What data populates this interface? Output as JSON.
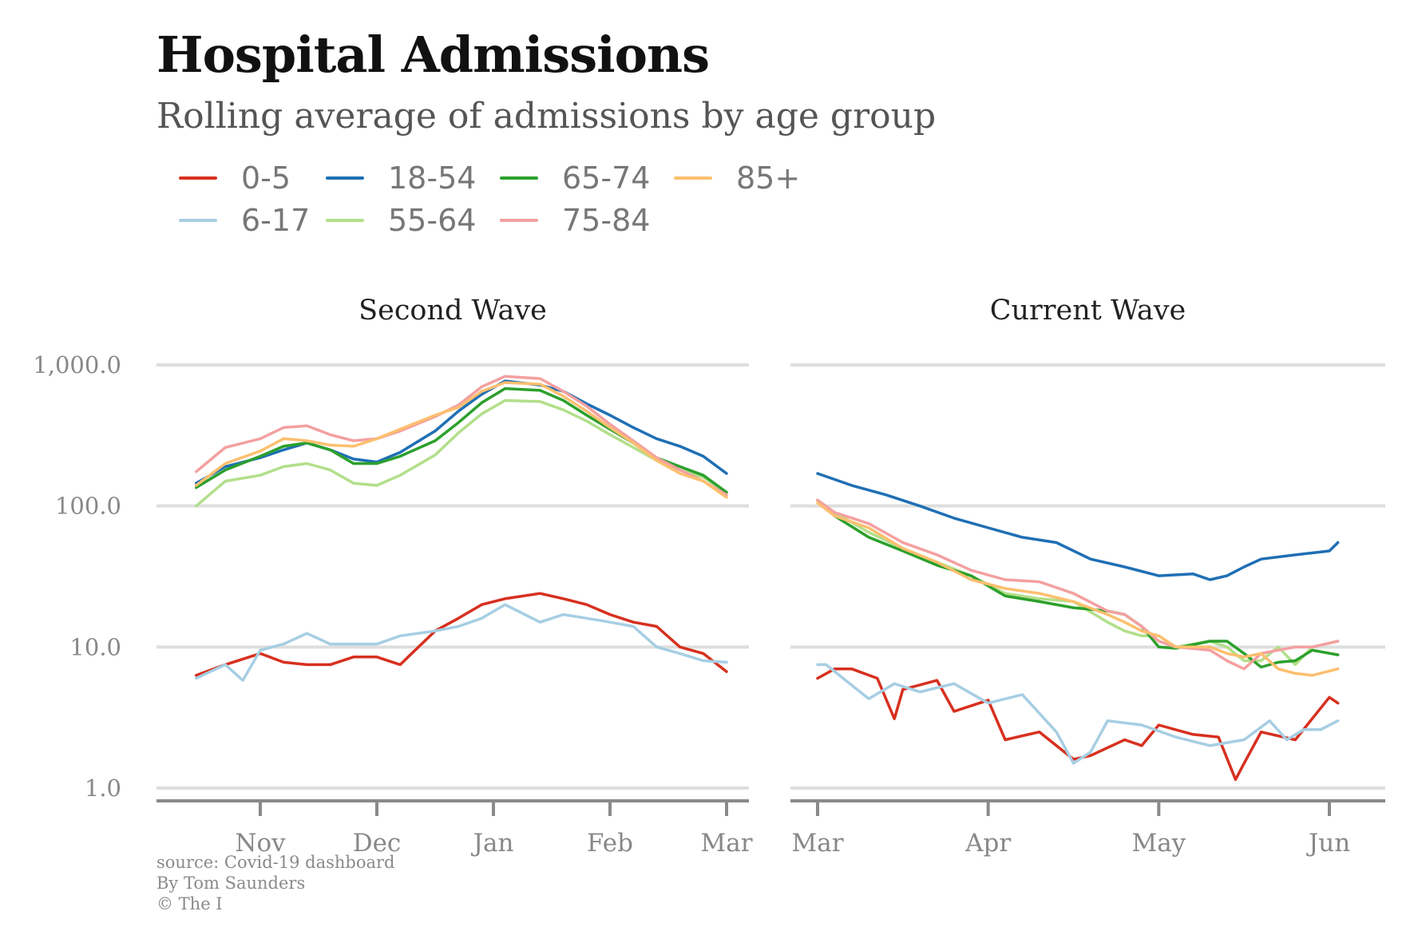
{
  "header": {
    "title": "Hospital Admissions",
    "subtitle": "Rolling average of admissions by age group"
  },
  "legend": [
    {
      "label": "0-5",
      "color": "#d7301f"
    },
    {
      "label": "6-17",
      "color": "#a6cee3"
    },
    {
      "label": "18-54",
      "color": "#1f6fb4"
    },
    {
      "label": "55-64",
      "color": "#b2df8a"
    },
    {
      "label": "65-74",
      "color": "#2ca02c"
    },
    {
      "label": "75-84",
      "color": "#f4a0a0"
    },
    {
      "label": "85+",
      "color": "#fdbf6f"
    }
  ],
  "footer": {
    "source": "source: Covid-19 dashboard",
    "author": "By Tom Saunders",
    "copyright": "© The I"
  },
  "chart_data": {
    "type": "line",
    "y_scale": "log",
    "ylim": [
      1,
      1000
    ],
    "y_ticks": [
      "1.0",
      "10.0",
      "100.0",
      "1,000.0"
    ],
    "grid": true,
    "legend_position": "top-left",
    "panels": [
      {
        "title": "Second Wave",
        "xlim": [
          -0.36,
          5.1
        ],
        "x_ticks": [
          {
            "label": "Nov",
            "x": 0
          },
          {
            "label": "Dec",
            "x": 1
          },
          {
            "label": "Jan",
            "x": 2
          },
          {
            "label": "Feb",
            "x": 3
          },
          {
            "label": "Mar",
            "x": 4
          }
        ],
        "series": [
          {
            "name": "0-5",
            "color": "#d7301f",
            "x": [
              -0.55,
              -0.3,
              0.0,
              0.2,
              0.4,
              0.6,
              0.8,
              1.0,
              1.2,
              1.5,
              1.7,
              1.9,
              2.1,
              2.4,
              2.6,
              2.8,
              3.0,
              3.2,
              3.4,
              3.6,
              3.8,
              4.0
            ],
            "y": [
              6.3,
              7.5,
              9.0,
              7.8,
              7.5,
              7.5,
              8.5,
              8.5,
              7.5,
              13,
              16,
              20,
              22,
              24,
              22,
              20,
              17,
              15,
              14,
              10,
              9,
              6.7
            ]
          },
          {
            "name": "6-17",
            "color": "#a6cee3",
            "x": [
              -0.55,
              -0.3,
              -0.15,
              0.0,
              0.2,
              0.4,
              0.6,
              0.8,
              1.0,
              1.2,
              1.5,
              1.7,
              1.9,
              2.1,
              2.4,
              2.6,
              2.8,
              3.0,
              3.2,
              3.4,
              3.6,
              3.8,
              4.0
            ],
            "y": [
              6.0,
              7.5,
              5.8,
              9.5,
              10.5,
              12.5,
              10.5,
              10.5,
              10.5,
              12,
              13,
              14,
              16,
              20,
              15,
              17,
              16,
              15,
              14,
              10,
              9,
              8,
              7.8
            ]
          },
          {
            "name": "18-54",
            "color": "#1f6fb4",
            "x": [
              -0.55,
              -0.3,
              0.0,
              0.2,
              0.4,
              0.6,
              0.8,
              1.0,
              1.2,
              1.5,
              1.7,
              1.9,
              2.1,
              2.4,
              2.6,
              2.8,
              3.0,
              3.2,
              3.4,
              3.6,
              3.8,
              4.0
            ],
            "y": [
              145,
              190,
              220,
              250,
              280,
              250,
              215,
              205,
              240,
              340,
              470,
              620,
              770,
              720,
              650,
              530,
              440,
              360,
              300,
              265,
              225,
              170
            ]
          },
          {
            "name": "55-64",
            "color": "#b2df8a",
            "x": [
              -0.55,
              -0.3,
              0.0,
              0.2,
              0.4,
              0.6,
              0.8,
              1.0,
              1.2,
              1.5,
              1.7,
              1.9,
              2.1,
              2.4,
              2.6,
              2.8,
              3.0,
              3.2,
              3.4,
              3.6,
              3.8,
              4.0
            ],
            "y": [
              100,
              150,
              165,
              190,
              200,
              180,
              145,
              140,
              165,
              230,
              330,
              450,
              560,
              550,
              480,
              400,
              320,
              260,
              210,
              180,
              160,
              125
            ]
          },
          {
            "name": "65-74",
            "color": "#2ca02c",
            "x": [
              -0.55,
              -0.3,
              0.0,
              0.2,
              0.4,
              0.6,
              0.8,
              1.0,
              1.2,
              1.5,
              1.7,
              1.9,
              2.1,
              2.4,
              2.6,
              2.8,
              3.0,
              3.2,
              3.4,
              3.6,
              3.8,
              4.0
            ],
            "y": [
              135,
              180,
              225,
              265,
              280,
              250,
              200,
              200,
              225,
              290,
              390,
              540,
              680,
              660,
              560,
              440,
              350,
              280,
              220,
              190,
              165,
              125
            ]
          },
          {
            "name": "75-84",
            "color": "#f4a0a0",
            "x": [
              -0.55,
              -0.3,
              0.0,
              0.2,
              0.4,
              0.6,
              0.8,
              1.0,
              1.2,
              1.5,
              1.7,
              1.9,
              2.1,
              2.4,
              2.6,
              2.8,
              3.0,
              3.2,
              3.4,
              3.6,
              3.8,
              4.0
            ],
            "y": [
              175,
              260,
              300,
              360,
              370,
              320,
              290,
              300,
              340,
              430,
              520,
              700,
              830,
              800,
              650,
              510,
              380,
              290,
              220,
              180,
              150,
              120
            ]
          },
          {
            "name": "85+",
            "color": "#fdbf6f",
            "x": [
              -0.55,
              -0.3,
              0.0,
              0.2,
              0.4,
              0.6,
              0.8,
              1.0,
              1.2,
              1.5,
              1.7,
              1.9,
              2.1,
              2.4,
              2.6,
              2.8,
              3.0,
              3.2,
              3.4,
              3.6,
              3.8,
              4.0
            ],
            "y": [
              140,
              200,
              245,
              300,
              290,
              270,
              265,
              300,
              350,
              440,
              500,
              650,
              750,
              730,
              600,
              470,
              360,
              280,
              210,
              170,
              150,
              115
            ]
          }
        ]
      },
      {
        "title": "Current Wave",
        "xlim": [
          -0.15,
          3.3
        ],
        "x_ticks": [
          {
            "label": "Mar",
            "x": 0
          },
          {
            "label": "Apr",
            "x": 1
          },
          {
            "label": "May",
            "x": 2
          },
          {
            "label": "Jun",
            "x": 3
          }
        ],
        "series": [
          {
            "name": "0-5",
            "color": "#d7301f",
            "x": [
              0.0,
              0.1,
              0.2,
              0.35,
              0.45,
              0.5,
              0.7,
              0.8,
              1.0,
              1.1,
              1.3,
              1.5,
              1.6,
              1.8,
              1.9,
              2.0,
              2.2,
              2.35,
              2.45,
              2.5,
              2.6,
              2.8,
              3.0,
              3.05
            ],
            "y": [
              6,
              7,
              7,
              6,
              3.1,
              5,
              5.8,
              3.5,
              4.2,
              2.2,
              2.5,
              1.6,
              1.7,
              2.2,
              2.0,
              2.8,
              2.4,
              2.3,
              1.15,
              1.5,
              2.5,
              2.2,
              4.4,
              4.0
            ]
          },
          {
            "name": "6-17",
            "color": "#a6cee3",
            "x": [
              0.0,
              0.05,
              0.15,
              0.3,
              0.45,
              0.6,
              0.8,
              1.0,
              1.2,
              1.4,
              1.5,
              1.6,
              1.7,
              1.9,
              2.1,
              2.3,
              2.5,
              2.65,
              2.75,
              2.85,
              2.95,
              3.05
            ],
            "y": [
              7.5,
              7.5,
              6,
              4.3,
              5.5,
              4.8,
              5.5,
              4.0,
              4.6,
              2.5,
              1.5,
              1.8,
              3.0,
              2.8,
              2.3,
              2.0,
              2.2,
              3.0,
              2.2,
              2.6,
              2.6,
              3.0
            ]
          },
          {
            "name": "18-54",
            "color": "#1f6fb4",
            "x": [
              0.0,
              0.2,
              0.4,
              0.6,
              0.8,
              1.0,
              1.2,
              1.4,
              1.6,
              1.8,
              2.0,
              2.2,
              2.3,
              2.4,
              2.5,
              2.6,
              2.8,
              3.0,
              3.05
            ],
            "y": [
              170,
              140,
              120,
              100,
              82,
              70,
              60,
              55,
              42,
              37,
              32,
              33,
              30,
              32,
              37,
              42,
              45,
              48,
              55
            ]
          },
          {
            "name": "55-64",
            "color": "#b2df8a",
            "x": [
              0.0,
              0.1,
              0.3,
              0.5,
              0.7,
              0.9,
              1.1,
              1.3,
              1.5,
              1.7,
              1.8,
              1.9,
              2.0,
              2.1,
              2.3,
              2.4,
              2.5,
              2.6,
              2.7,
              2.8,
              2.9,
              3.05
            ],
            "y": [
              110,
              90,
              65,
              50,
              40,
              32,
              24,
              22,
              21,
              15,
              13,
              12,
              12,
              10,
              11,
              10,
              8,
              8,
              10,
              7.5,
              10,
              11
            ]
          },
          {
            "name": "65-74",
            "color": "#2ca02c",
            "x": [
              0.0,
              0.1,
              0.3,
              0.5,
              0.7,
              0.9,
              1.1,
              1.3,
              1.5,
              1.7,
              1.8,
              1.9,
              2.0,
              2.1,
              2.3,
              2.4,
              2.5,
              2.6,
              2.7,
              2.8,
              2.9,
              3.05
            ],
            "y": [
              110,
              85,
              60,
              48,
              38,
              32,
              23,
              21,
              19,
              18,
              17,
              14,
              10,
              9.8,
              11,
              11,
              9,
              7.2,
              7.8,
              8,
              9.5,
              8.8
            ]
          },
          {
            "name": "75-84",
            "color": "#f4a0a0",
            "x": [
              0.0,
              0.1,
              0.3,
              0.5,
              0.7,
              0.9,
              1.1,
              1.3,
              1.5,
              1.7,
              1.8,
              1.9,
              2.0,
              2.1,
              2.3,
              2.4,
              2.5,
              2.6,
              2.7,
              2.8,
              2.9,
              3.05
            ],
            "y": [
              110,
              90,
              75,
              55,
              45,
              35,
              30,
              29,
              24,
              18,
              17,
              14,
              11,
              10,
              9.5,
              8,
              7,
              9,
              9.5,
              10,
              10,
              11
            ]
          },
          {
            "name": "85+",
            "color": "#fdbf6f",
            "x": [
              0.0,
              0.1,
              0.3,
              0.5,
              0.7,
              0.9,
              1.1,
              1.3,
              1.5,
              1.7,
              1.8,
              1.9,
              2.0,
              2.1,
              2.3,
              2.4,
              2.5,
              2.6,
              2.7,
              2.8,
              2.9,
              3.05
            ],
            "y": [
              105,
              85,
              70,
              50,
              40,
              30,
              26,
              24,
              21,
              17,
              15,
              13,
              12,
              10,
              10,
              9,
              8.5,
              9,
              7,
              6.5,
              6.3,
              7
            ]
          }
        ]
      }
    ]
  }
}
